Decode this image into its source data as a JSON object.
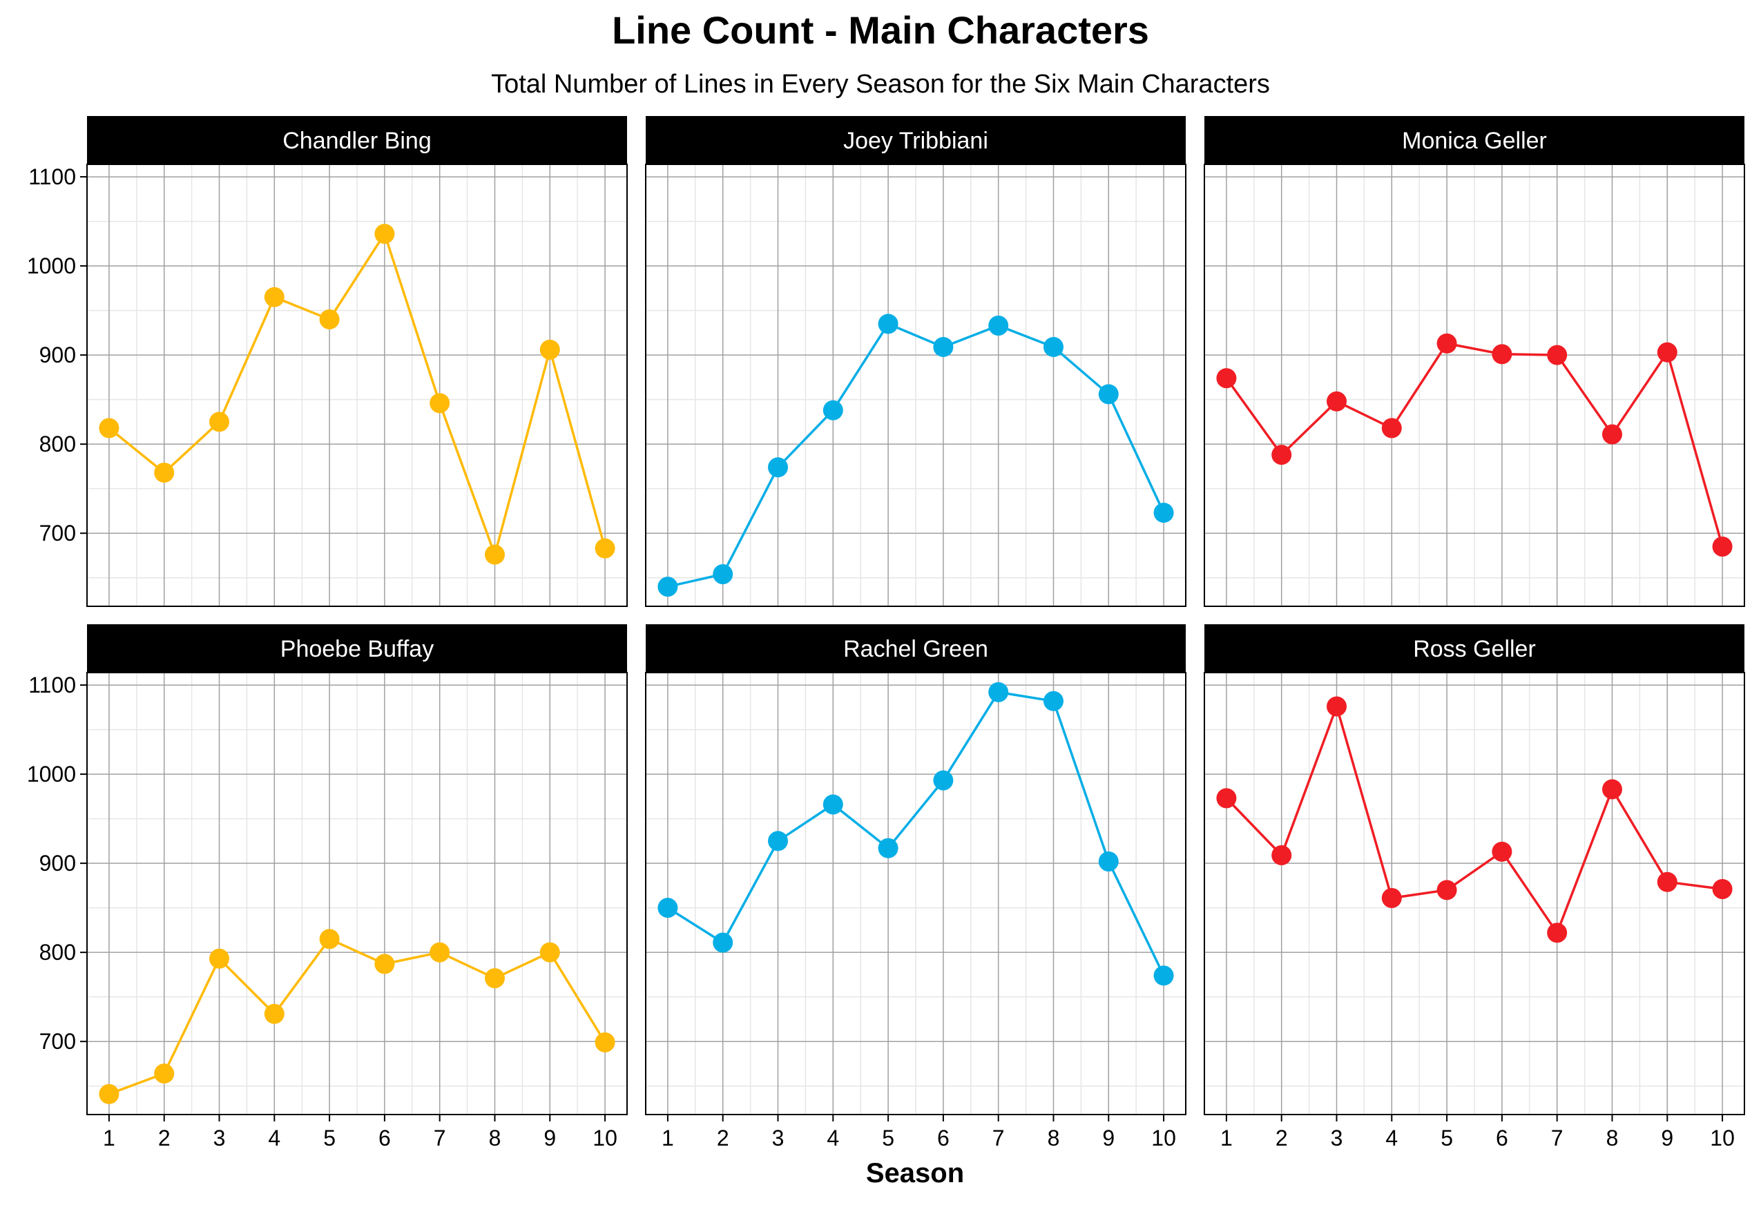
{
  "chart_data": {
    "type": "line",
    "title": "Line Count - Main Characters",
    "subtitle": "Total Number of Lines in Every Season for the Six Main Characters",
    "xlabel": "Season",
    "ylabel": "",
    "x": [
      1,
      2,
      3,
      4,
      5,
      6,
      7,
      8,
      9,
      10
    ],
    "x_ticks": [
      "1",
      "2",
      "3",
      "4",
      "5",
      "6",
      "7",
      "8",
      "9",
      "10"
    ],
    "y_ticks": [
      "700",
      "800",
      "900",
      "1000",
      "1100"
    ],
    "y_tick_values": [
      700,
      800,
      900,
      1000,
      1100
    ],
    "xlim": [
      0.6,
      10.4
    ],
    "ylim": [
      618,
      1114
    ],
    "grid": true,
    "layout": "facet grid, 2 rows by 3 columns, shared axes",
    "panels": [
      {
        "name": "Chandler Bing",
        "color": "#FFBA08",
        "values": [
          818,
          768,
          825,
          965,
          940,
          1036,
          846,
          676,
          906,
          683
        ]
      },
      {
        "name": "Joey Tribbiani",
        "color": "#06AEE6",
        "values": [
          640,
          654,
          774,
          838,
          935,
          909,
          933,
          909,
          856,
          723
        ]
      },
      {
        "name": "Monica Geller",
        "color": "#F01D24",
        "values": [
          874,
          788,
          848,
          818,
          913,
          901,
          900,
          811,
          903,
          685
        ]
      },
      {
        "name": "Phoebe Buffay",
        "color": "#FFBA08",
        "values": [
          641,
          664,
          793,
          731,
          815,
          787,
          800,
          771,
          800,
          699
        ]
      },
      {
        "name": "Rachel Green",
        "color": "#06AEE6",
        "values": [
          850,
          811,
          925,
          966,
          917,
          993,
          1092,
          1082,
          902,
          774
        ]
      },
      {
        "name": "Ross Geller",
        "color": "#F01D24",
        "values": [
          973,
          909,
          1076,
          861,
          870,
          913,
          822,
          983,
          879,
          871
        ]
      }
    ]
  }
}
